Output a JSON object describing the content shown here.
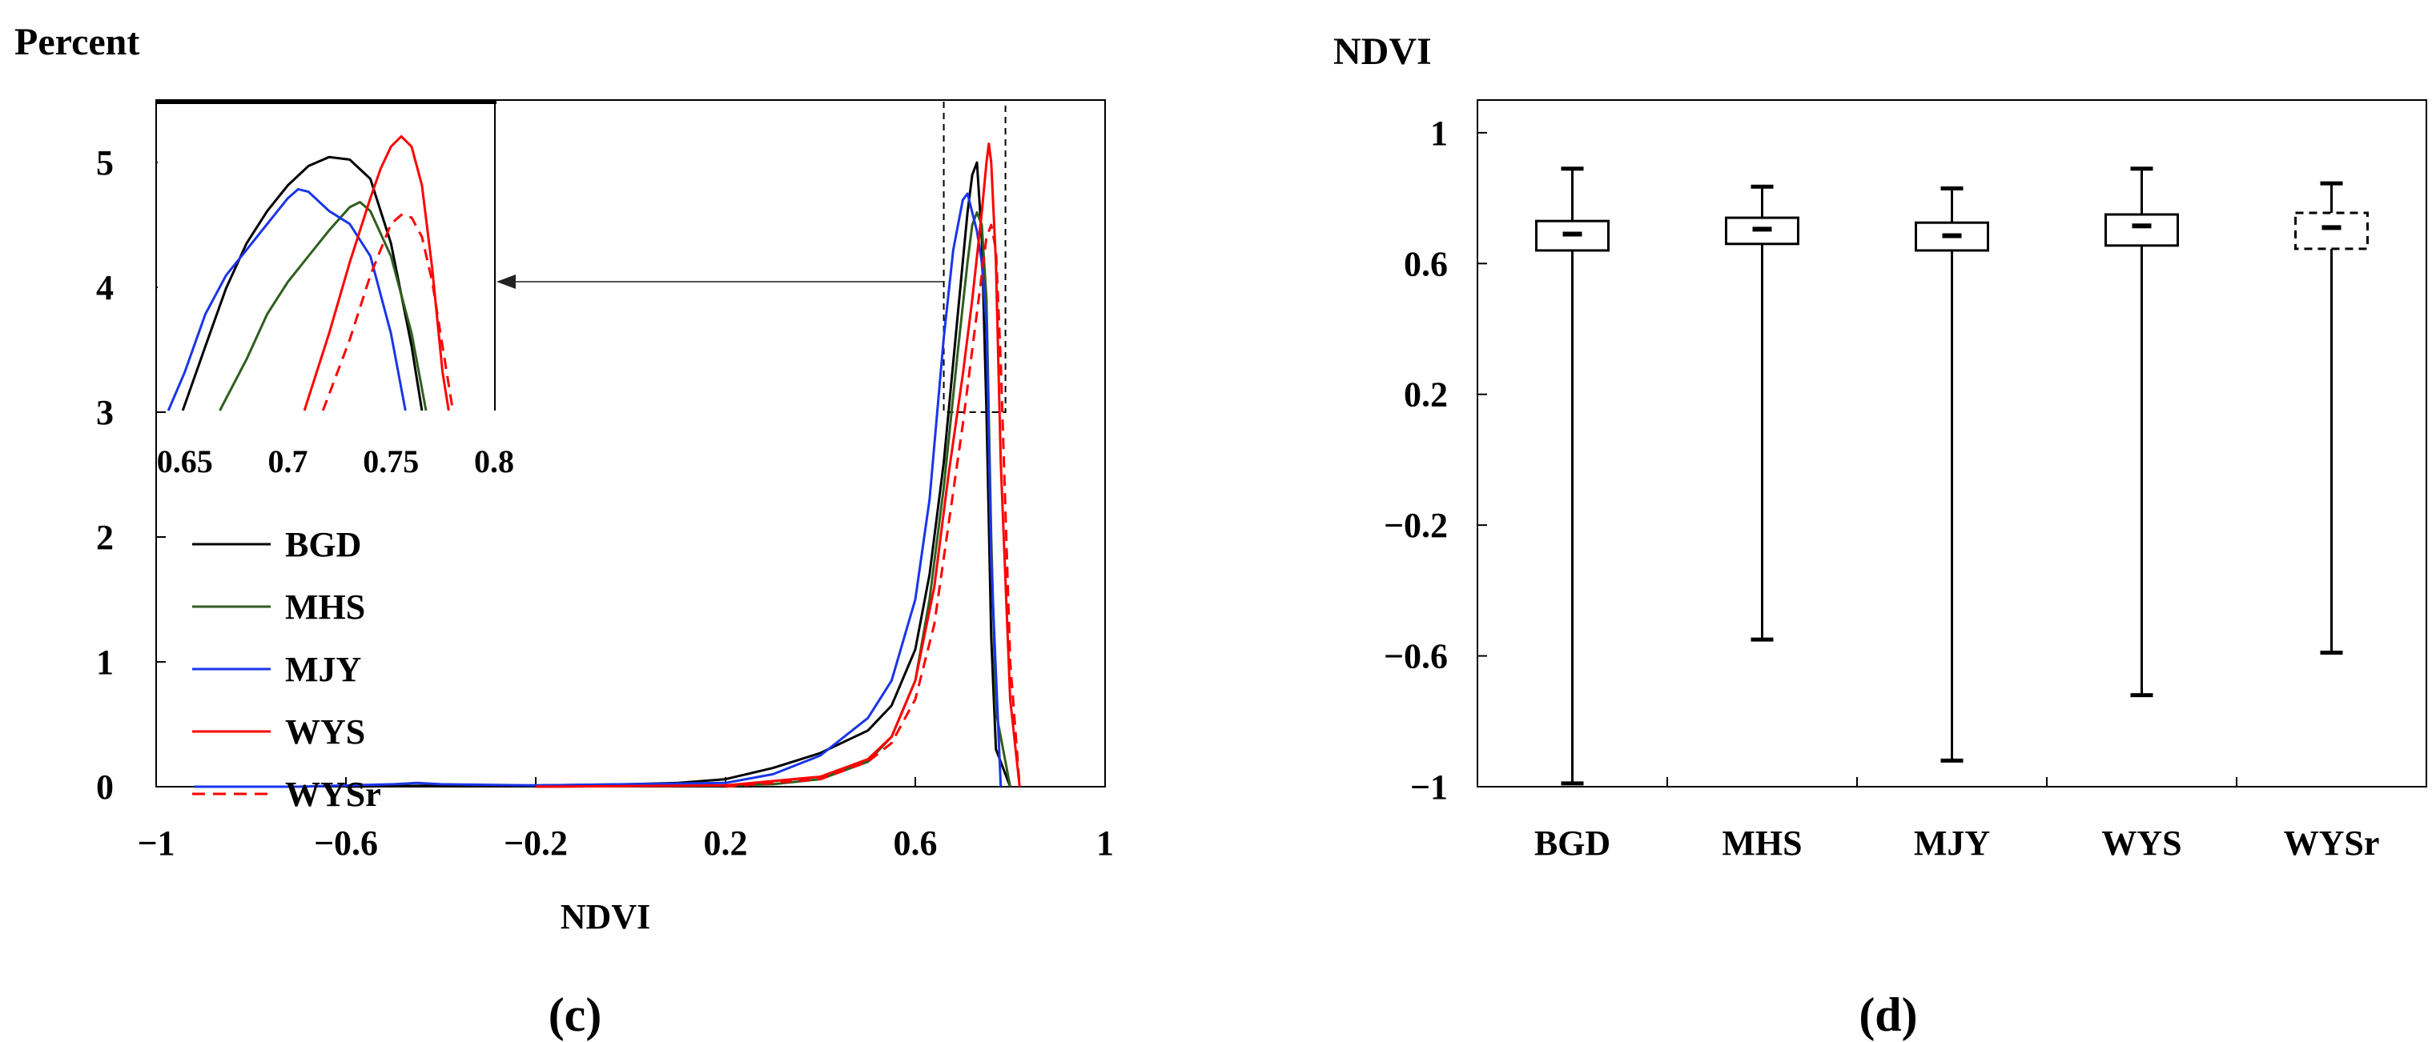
{
  "chart_data": [
    {
      "panel": "(c)",
      "type": "line",
      "title": "",
      "ylabel": "Percent",
      "xlabel": "NDVI",
      "xlim": [
        -1,
        1
      ],
      "ylim": [
        0,
        5.5
      ],
      "xticks": [
        "−1",
        "−0.6",
        "−0.2",
        "0.2",
        "0.6",
        "1"
      ],
      "xtick_values": [
        -1,
        -0.6,
        -0.2,
        0.2,
        0.6,
        1
      ],
      "yticks": [
        "0",
        "1",
        "2",
        "3",
        "4",
        "5"
      ],
      "ytick_values": [
        0,
        1,
        2,
        3,
        4,
        5
      ],
      "legend_position": "lower-left",
      "series": [
        {
          "name": "BGD",
          "color": "#000000",
          "dash": false,
          "x": [
            -0.6,
            -0.4,
            -0.2,
            0.0,
            0.1,
            0.2,
            0.3,
            0.4,
            0.5,
            0.55,
            0.6,
            0.63,
            0.66,
            0.69,
            0.71,
            0.72,
            0.73,
            0.74,
            0.75,
            0.76,
            0.77,
            0.8
          ],
          "y": [
            0,
            0.01,
            0.01,
            0.02,
            0.03,
            0.06,
            0.15,
            0.27,
            0.45,
            0.65,
            1.1,
            1.7,
            2.6,
            3.8,
            4.6,
            4.9,
            5.0,
            4.4,
            3.0,
            1.2,
            0.3,
            0
          ]
        },
        {
          "name": "MHS",
          "color": "#2f5e1e",
          "dash": false,
          "x": [
            -0.2,
            0.2,
            0.3,
            0.4,
            0.5,
            0.55,
            0.6,
            0.63,
            0.66,
            0.69,
            0.71,
            0.72,
            0.73,
            0.74,
            0.75,
            0.76,
            0.77,
            0.8
          ],
          "y": [
            0,
            0.01,
            0.02,
            0.06,
            0.2,
            0.4,
            0.85,
            1.5,
            2.4,
            3.5,
            4.2,
            4.5,
            4.6,
            4.5,
            3.9,
            2.0,
            0.6,
            0
          ]
        },
        {
          "name": "MJY",
          "color": "#1a35e8",
          "dash": false,
          "x": [
            -0.92,
            -0.7,
            -0.5,
            -0.45,
            -0.4,
            -0.2,
            0.2,
            0.3,
            0.4,
            0.5,
            0.55,
            0.6,
            0.63,
            0.66,
            0.68,
            0.7,
            0.71,
            0.72,
            0.73,
            0.74,
            0.75,
            0.76,
            0.78
          ],
          "y": [
            0,
            0,
            0.02,
            0.03,
            0.02,
            0.01,
            0.03,
            0.1,
            0.25,
            0.55,
            0.85,
            1.5,
            2.3,
            3.6,
            4.3,
            4.7,
            4.75,
            4.6,
            4.45,
            4.2,
            3.7,
            1.8,
            0
          ]
        },
        {
          "name": "WYS",
          "color": "#ff0000",
          "dash": false,
          "x": [
            -0.2,
            0.2,
            0.4,
            0.5,
            0.55,
            0.6,
            0.64,
            0.67,
            0.7,
            0.72,
            0.74,
            0.75,
            0.755,
            0.76,
            0.77,
            0.78,
            0.8,
            0.82
          ],
          "y": [
            0,
            0.01,
            0.08,
            0.22,
            0.4,
            0.85,
            1.6,
            2.5,
            3.3,
            3.9,
            4.6,
            5.0,
            5.15,
            5.0,
            4.2,
            2.6,
            0.7,
            0
          ]
        },
        {
          "name": "WYSr",
          "color": "#ff0000",
          "dash": true,
          "x": [
            0.2,
            0.4,
            0.5,
            0.55,
            0.6,
            0.64,
            0.67,
            0.7,
            0.72,
            0.74,
            0.75,
            0.76,
            0.77,
            0.78,
            0.8,
            0.82
          ],
          "y": [
            0,
            0.06,
            0.2,
            0.35,
            0.7,
            1.3,
            2.1,
            2.9,
            3.5,
            4.1,
            4.4,
            4.5,
            4.3,
            3.4,
            1.0,
            0
          ]
        }
      ],
      "inset": {
        "xlim": [
          0.64,
          0.8
        ],
        "ylim": [
          3,
          5.4
        ],
        "xticks": [
          "0.65",
          "0.7",
          "0.75",
          "0.8"
        ],
        "xtick_values": [
          0.65,
          0.7,
          0.75,
          0.8
        ],
        "zoom_box": {
          "x": [
            0.66,
            0.79
          ],
          "y": [
            3,
            5.5
          ]
        },
        "series": [
          {
            "name": "BGD",
            "x": [
              0.649,
              0.66,
              0.67,
              0.68,
              0.69,
              0.7,
              0.71,
              0.72,
              0.73,
              0.74,
              0.75,
              0.76,
              0.765
            ],
            "y": [
              3.0,
              3.5,
              3.95,
              4.3,
              4.55,
              4.75,
              4.9,
              4.97,
              4.95,
              4.8,
              4.3,
              3.5,
              3.0
            ]
          },
          {
            "name": "MHS",
            "x": [
              0.667,
              0.68,
              0.69,
              0.7,
              0.71,
              0.72,
              0.73,
              0.735,
              0.74,
              0.75,
              0.76,
              0.767
            ],
            "y": [
              3.0,
              3.4,
              3.75,
              4.0,
              4.2,
              4.4,
              4.58,
              4.62,
              4.55,
              4.2,
              3.6,
              3.0
            ]
          },
          {
            "name": "MJY",
            "x": [
              0.642,
              0.65,
              0.66,
              0.67,
              0.68,
              0.69,
              0.7,
              0.705,
              0.71,
              0.72,
              0.73,
              0.74,
              0.75,
              0.757
            ],
            "y": [
              3.0,
              3.3,
              3.75,
              4.05,
              4.25,
              4.45,
              4.65,
              4.72,
              4.7,
              4.55,
              4.45,
              4.2,
              3.6,
              3.0
            ]
          },
          {
            "name": "WYS",
            "x": [
              0.708,
              0.72,
              0.73,
              0.74,
              0.745,
              0.75,
              0.755,
              0.76,
              0.765,
              0.77,
              0.775,
              0.778
            ],
            "y": [
              3.0,
              3.6,
              4.15,
              4.65,
              4.88,
              5.05,
              5.13,
              5.05,
              4.75,
              4.1,
              3.3,
              3.0
            ]
          },
          {
            "name": "WYSr",
            "x": [
              0.717,
              0.73,
              0.74,
              0.75,
              0.755,
              0.76,
              0.765,
              0.77,
              0.775,
              0.78
            ],
            "y": [
              3.0,
              3.55,
              4.05,
              4.45,
              4.52,
              4.5,
              4.35,
              4.0,
              3.5,
              3.0
            ]
          }
        ]
      },
      "caption": "(c)"
    },
    {
      "panel": "(d)",
      "type": "box",
      "title": "",
      "ylabel": "NDVI",
      "xlabel": "",
      "ylim": [
        -1,
        1.1
      ],
      "yticks": [
        "−1",
        "−0.6",
        "−0.2",
        "0.2",
        "0.6",
        "1"
      ],
      "ytick_values": [
        -1,
        -0.6,
        -0.2,
        0.2,
        0.6,
        1
      ],
      "categories": [
        "BGD",
        "MHS",
        "MJY",
        "WYS",
        "WYSr"
      ],
      "boxes": [
        {
          "name": "BGD",
          "min": -0.99,
          "q1": 0.64,
          "median": 0.69,
          "q3": 0.73,
          "max": 0.89,
          "dashed": false
        },
        {
          "name": "MHS",
          "min": -0.55,
          "q1": 0.66,
          "median": 0.705,
          "q3": 0.74,
          "max": 0.835,
          "dashed": false
        },
        {
          "name": "MJY",
          "min": -0.92,
          "q1": 0.64,
          "median": 0.685,
          "q3": 0.725,
          "max": 0.83,
          "dashed": false
        },
        {
          "name": "WYS",
          "min": -0.72,
          "q1": 0.655,
          "median": 0.715,
          "q3": 0.75,
          "max": 0.89,
          "dashed": false
        },
        {
          "name": "WYSr",
          "min": -0.59,
          "q1": 0.645,
          "median": 0.71,
          "q3": 0.755,
          "max": 0.845,
          "dashed": true
        }
      ],
      "caption": "(d)"
    }
  ]
}
